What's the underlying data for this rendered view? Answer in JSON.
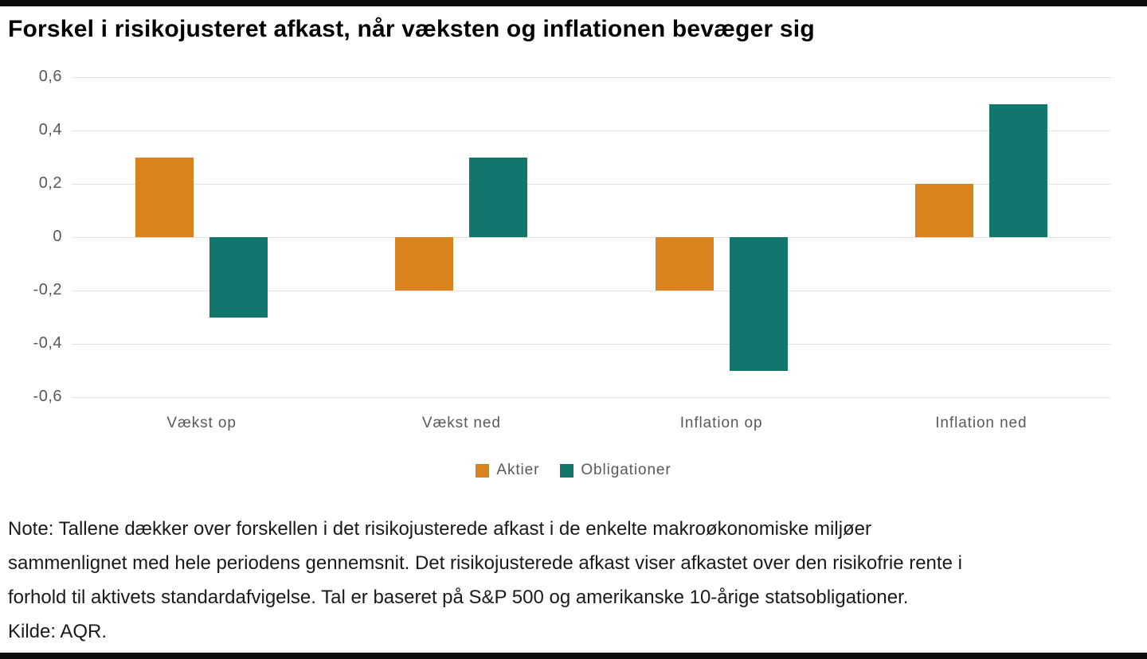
{
  "chart_data": {
    "type": "bar",
    "title": "Forskel i risikojusteret afkast, når væksten og inflationen bevæger sig",
    "categories": [
      "Vækst op",
      "Vækst ned",
      "Inflation op",
      "Inflation ned"
    ],
    "series": [
      {
        "name": "Aktier",
        "color": "#D9831F",
        "values": [
          0.3,
          -0.2,
          -0.2,
          0.2
        ]
      },
      {
        "name": "Obligationer",
        "color": "#13766C",
        "values": [
          -0.3,
          0.3,
          -0.5,
          0.5
        ]
      }
    ],
    "xlabel": "",
    "ylabel": "",
    "ylim": [
      -0.6,
      0.6
    ],
    "yticks": [
      {
        "value": 0.6,
        "label": "0,6"
      },
      {
        "value": 0.4,
        "label": "0,4"
      },
      {
        "value": 0.2,
        "label": "0,2"
      },
      {
        "value": 0,
        "label": "0"
      },
      {
        "value": -0.2,
        "label": "-0,2"
      },
      {
        "value": -0.4,
        "label": "-0,4"
      },
      {
        "value": -0.6,
        "label": "-0,6"
      }
    ],
    "grid": true,
    "legend_position": "bottom"
  },
  "note": {
    "lines": [
      "Note: Tallene dækker over forskellen i det risikojusterede afkast i de enkelte makroøkonomiske miljøer",
      "sammenlignet med hele periodens gennemsnit. Det risikojusterede afkast viser afkastet over den risikofrie rente i",
      "forhold til aktivets standardafvigelse. Tal er baseret på S&P 500 og amerikanske 10-årige statsobligationer.",
      "Kilde: AQR."
    ]
  },
  "colors": {
    "aktier": "#D9831F",
    "obligationer": "#13766C",
    "gridline": "#e2e2e2",
    "axis_text": "#595959",
    "rule": "#0d0d0d"
  }
}
